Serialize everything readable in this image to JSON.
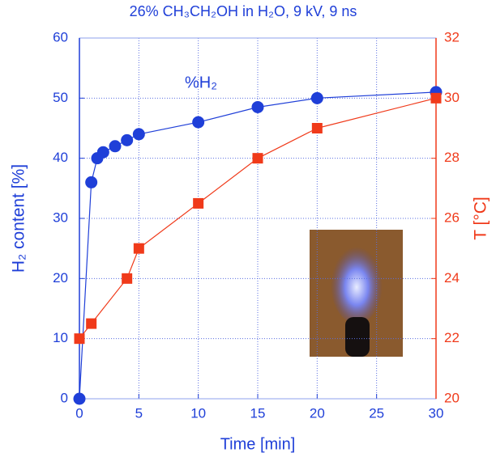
{
  "chart_data": {
    "type": "line",
    "title": "26% CH₃CH₂OH in H₂O, 9 kV, 9 ns",
    "x_label": "Time [min]",
    "y_label": "H₂ content [%]",
    "y2_label": "T [°C]",
    "series": [
      {
        "name": "%H₂",
        "color": "#1f3fd8",
        "marker": "circle",
        "x": [
          0,
          1,
          1.5,
          2,
          3,
          4,
          5,
          10,
          15,
          20,
          30
        ],
        "values": [
          0,
          36,
          40,
          41,
          42,
          43,
          44,
          46,
          48.5,
          50,
          51
        ]
      },
      {
        "color": "#f03a1a",
        "marker": "square",
        "axis": "y2",
        "x": [
          0,
          1,
          4,
          5,
          10,
          15,
          20,
          30
        ],
        "values": [
          22,
          22.5,
          24,
          25,
          26.5,
          28,
          29,
          30
        ]
      }
    ],
    "xlim": [
      0,
      30
    ],
    "xticks": [
      0,
      5,
      10,
      15,
      20,
      25,
      30
    ],
    "ylim": [
      0,
      60
    ],
    "yticks": [
      0,
      10,
      20,
      30,
      40,
      50,
      60
    ],
    "y2lim": [
      20,
      32
    ],
    "y2ticks": [
      20,
      22,
      24,
      26,
      28,
      30,
      32
    ],
    "grid": true
  }
}
